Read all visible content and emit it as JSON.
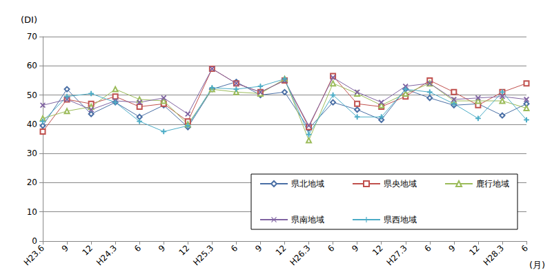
{
  "chart_data": {
    "type": "line",
    "y_label": "(DI)",
    "x_label": "(月)",
    "categories": [
      "H23.6",
      "9",
      "12",
      "H24.3",
      "6",
      "9",
      "12",
      "H25.3",
      "6",
      "9",
      "12",
      "H26.3",
      "6",
      "9",
      "12",
      "H27.3",
      "6",
      "9",
      "12",
      "H28.3",
      "6"
    ],
    "ylim": [
      0,
      70
    ],
    "yticks": [
      0,
      10,
      20,
      30,
      40,
      50,
      60,
      70
    ],
    "grid": true,
    "legend": "lower right",
    "series": [
      {
        "name": "県北地域",
        "color": "#4a6fa5",
        "marker": "diamond",
        "values": [
          39.5,
          52,
          43.5,
          47.5,
          42.5,
          46.5,
          39,
          52,
          54.5,
          50,
          51,
          38.5,
          47.5,
          45,
          41.5,
          52,
          49,
          46.5,
          47,
          43,
          47
        ]
      },
      {
        "name": "県央地域",
        "color": "#c0504d",
        "marker": "square",
        "values": [
          37.5,
          48.5,
          47,
          49.5,
          46,
          47,
          41,
          59,
          54,
          51,
          55,
          39,
          56.5,
          47,
          46,
          49.5,
          55,
          51,
          46.5,
          51,
          54
        ]
      },
      {
        "name": "鹿行地域",
        "color": "#9bbb59",
        "marker": "triangle",
        "values": [
          42,
          44.5,
          46,
          52,
          48.5,
          48,
          40,
          52,
          51,
          50.5,
          55.5,
          34.5,
          54,
          50.5,
          46.5,
          50.5,
          54,
          48,
          48,
          48,
          45.5
        ]
      },
      {
        "name": "県南地域",
        "color": "#8064a2",
        "marker": "x",
        "values": [
          46.5,
          48.5,
          45,
          48,
          47.5,
          49,
          43.5,
          59,
          54,
          51,
          55,
          39.5,
          56,
          51,
          47.5,
          53,
          54,
          48.5,
          49,
          49.5,
          48.5
        ]
      },
      {
        "name": "県西地域",
        "color": "#4bacc6",
        "marker": "plus",
        "values": [
          41,
          49.5,
          50.5,
          47.5,
          41,
          37.5,
          39.5,
          52.5,
          52,
          53,
          55.5,
          36.5,
          50,
          42.5,
          42.5,
          52,
          51,
          47,
          42,
          51,
          41.5
        ]
      }
    ]
  }
}
